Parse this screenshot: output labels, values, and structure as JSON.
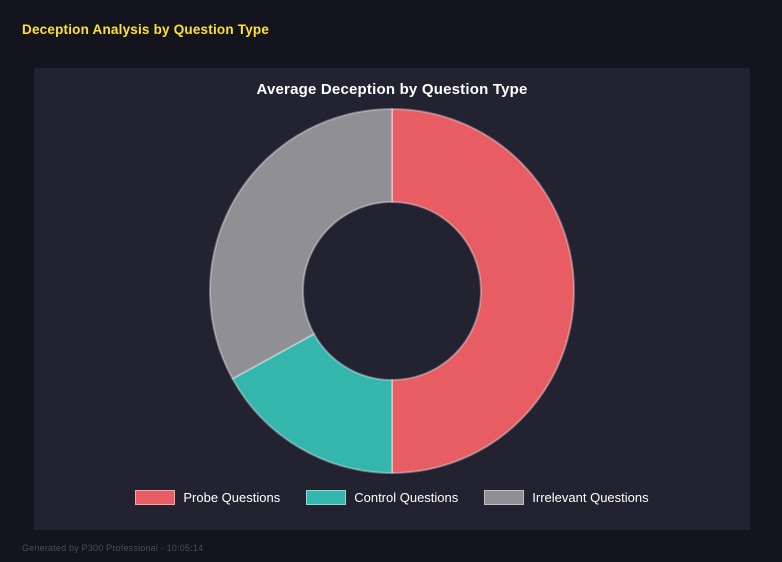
{
  "page": {
    "title": "Deception Analysis by Question Type",
    "footer": "Generated by P300 Professional - 10:05:14"
  },
  "chart_data": {
    "type": "pie",
    "variant": "doughnut",
    "title": "Average Deception by Question Type",
    "labels": [
      "Probe Questions",
      "Control Questions",
      "Irrelevant Questions"
    ],
    "values": [
      50,
      17,
      33
    ],
    "unit": "percent",
    "colors": [
      "#e85c64",
      "#35b6ac",
      "#8f8f94"
    ],
    "segment_border_color": "rgba(255,255,255,0.35)",
    "legend_position": "bottom",
    "hole_ratio": 0.49
  }
}
